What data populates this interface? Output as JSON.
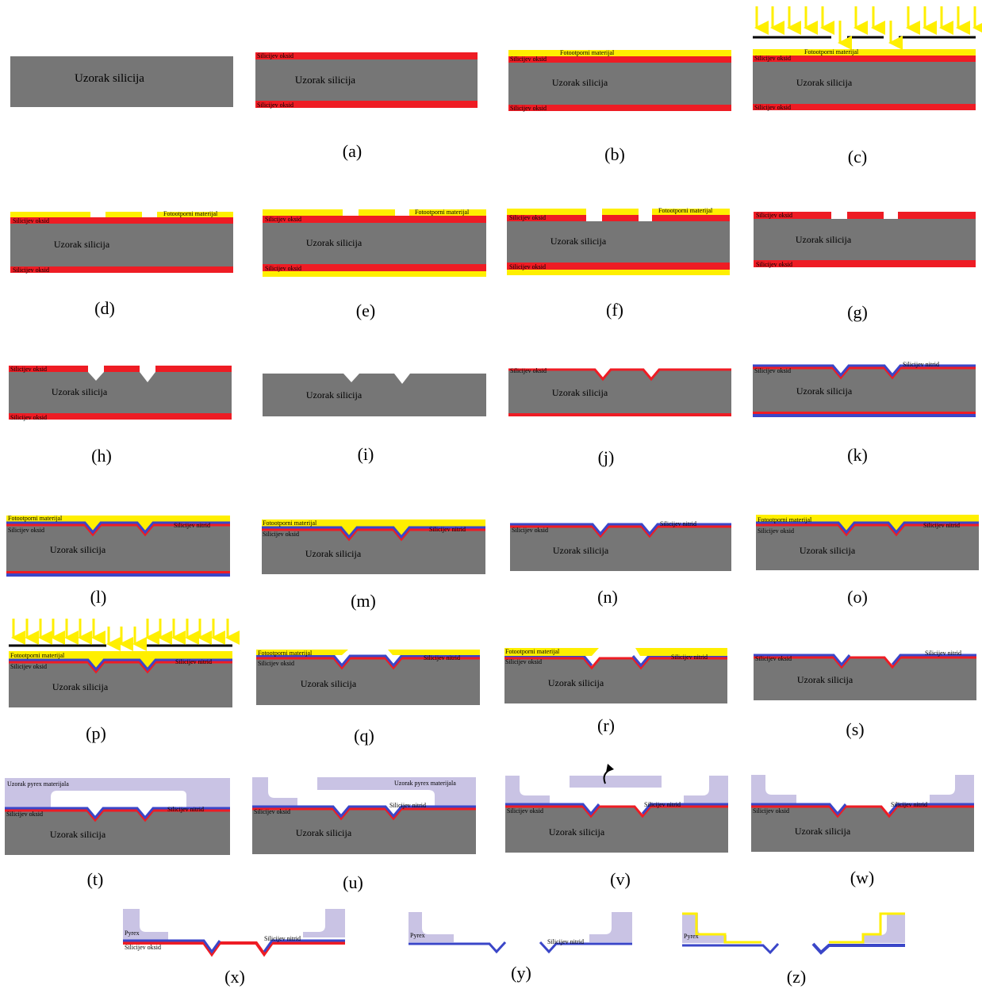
{
  "colors": {
    "silicon": "#767676",
    "oxide": "#ee1c24",
    "resist": "#ffef00",
    "nitride": "#3a46c8",
    "pyrex": "#c9c3e4",
    "mask": "#000000",
    "arrow": "#ffef00",
    "text": "#000000"
  },
  "text": {
    "si": "Uzorak silicija",
    "ox": "Silicijev oksid",
    "pr": "Fotootporni materijal",
    "ni": "Silicijev nitrid",
    "py": "Uzorak pyrex materijala",
    "pyx": "Pyrex"
  },
  "captions": [
    "(a)",
    "(b)",
    "(c)",
    "(d)",
    "(e)",
    "(f)",
    "(g)",
    "(h)",
    "(i)",
    "(j)",
    "(k)",
    "(l)",
    "(m)",
    "(n)",
    "(o)",
    "(p)",
    "(q)",
    "(r)",
    "(s)",
    "(t)",
    "(u)",
    "(v)",
    "(w)",
    "(x)",
    "(y)",
    "(z)"
  ],
  "icons": {
    "uv_exposure": "uv-arrow-icon",
    "lift_off": "curved-arrow-icon"
  }
}
